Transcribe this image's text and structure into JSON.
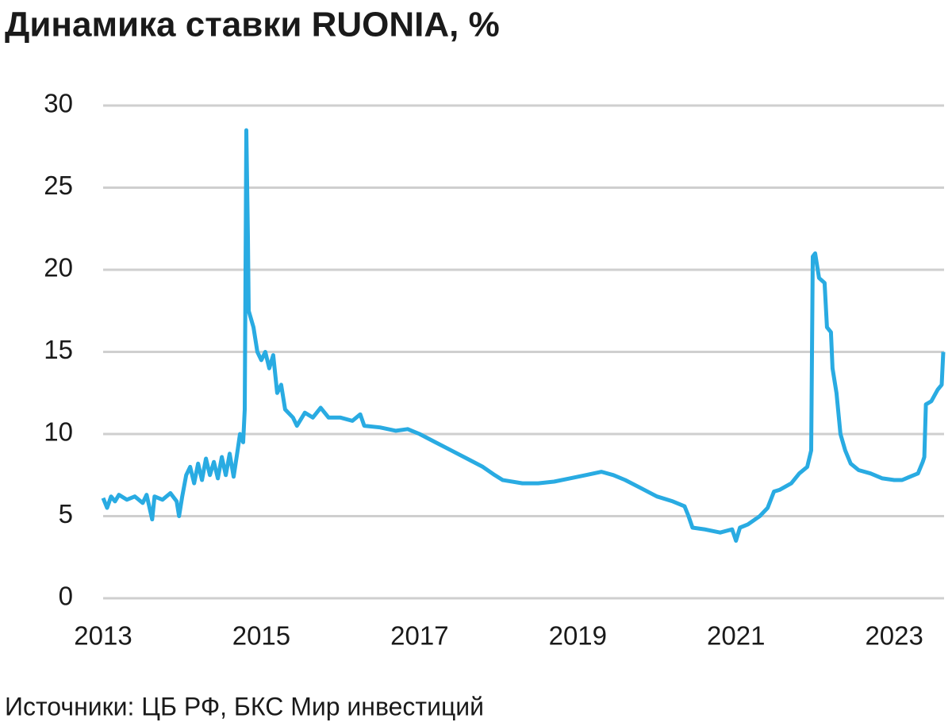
{
  "chart_data": {
    "type": "line",
    "title": "Динамика ставки RUONIA, %",
    "source": "Источники: ЦБ РФ, БКС Мир инвестиций",
    "x": [
      2013.0,
      2013.05,
      2013.1,
      2013.15,
      2013.2,
      2013.3,
      2013.4,
      2013.5,
      2013.55,
      2013.62,
      2013.65,
      2013.75,
      2013.85,
      2013.93,
      2013.96,
      2014.0,
      2014.05,
      2014.1,
      2014.15,
      2014.2,
      2014.25,
      2014.3,
      2014.35,
      2014.4,
      2014.45,
      2014.5,
      2014.55,
      2014.6,
      2014.65,
      2014.7,
      2014.73,
      2014.77,
      2014.79,
      2014.81,
      2014.83,
      2014.84,
      2014.9,
      2014.95,
      2015.0,
      2015.05,
      2015.1,
      2015.15,
      2015.2,
      2015.25,
      2015.3,
      2015.4,
      2015.45,
      2015.55,
      2015.65,
      2015.75,
      2015.85,
      2016.0,
      2016.15,
      2016.25,
      2016.3,
      2016.5,
      2016.7,
      2016.85,
      2017.0,
      2017.2,
      2017.4,
      2017.6,
      2017.8,
      2017.95,
      2018.05,
      2018.3,
      2018.5,
      2018.7,
      2018.9,
      2019.1,
      2019.3,
      2019.45,
      2019.6,
      2019.8,
      2020.0,
      2020.2,
      2020.35,
      2020.4,
      2020.45,
      2020.6,
      2020.8,
      2020.95,
      2021.0,
      2021.05,
      2021.15,
      2021.3,
      2021.4,
      2021.48,
      2021.55,
      2021.7,
      2021.8,
      2021.9,
      2021.95,
      2021.97,
      2022.0,
      2022.05,
      2022.12,
      2022.15,
      2022.2,
      2022.22,
      2022.27,
      2022.32,
      2022.38,
      2022.45,
      2022.55,
      2022.7,
      2022.85,
      2023.0,
      2023.1,
      2023.2,
      2023.3,
      2023.36,
      2023.38,
      2023.4,
      2023.47,
      2023.55,
      2023.6,
      2023.62
    ],
    "series": [
      {
        "name": "RUONIA",
        "color": "#29abe2",
        "values": [
          6.1,
          5.5,
          6.2,
          5.9,
          6.3,
          6.0,
          6.2,
          5.8,
          6.3,
          4.8,
          6.2,
          6.0,
          6.4,
          5.9,
          5.0,
          6.2,
          7.5,
          8.0,
          7.0,
          8.2,
          7.2,
          8.5,
          7.5,
          8.3,
          7.3,
          8.6,
          7.5,
          8.8,
          7.4,
          9.0,
          10.0,
          9.5,
          11.5,
          28.5,
          22,
          17.5,
          16.5,
          15,
          14.5,
          15,
          14,
          14.8,
          12.5,
          13,
          11.5,
          11,
          10.5,
          11.3,
          11,
          11.6,
          11,
          11,
          10.8,
          11.2,
          10.5,
          10.4,
          10.2,
          10.3,
          10.0,
          9.5,
          9.0,
          8.5,
          8.0,
          7.5,
          7.2,
          7.0,
          7.0,
          7.1,
          7.3,
          7.5,
          7.7,
          7.5,
          7.2,
          6.7,
          6.2,
          5.9,
          5.6,
          5.0,
          4.3,
          4.2,
          4.0,
          4.2,
          3.5,
          4.3,
          4.5,
          5.0,
          5.5,
          6.5,
          6.6,
          7.0,
          7.6,
          8.0,
          9,
          20.8,
          21,
          19.5,
          19.2,
          16.5,
          16.2,
          14,
          12.5,
          10,
          9,
          8.2,
          7.8,
          7.6,
          7.3,
          7.2,
          7.2,
          7.4,
          7.6,
          8.3,
          8.6,
          11.8,
          12.0,
          12.7,
          13,
          15.0
        ]
      }
    ],
    "xlim": [
      2013,
      2023.63
    ],
    "xticks": [
      2013,
      2015,
      2017,
      2019,
      2021,
      2023
    ],
    "ylim": [
      0,
      30
    ],
    "yticks": [
      0,
      5,
      10,
      15,
      20,
      25,
      30
    ],
    "grid": true
  }
}
